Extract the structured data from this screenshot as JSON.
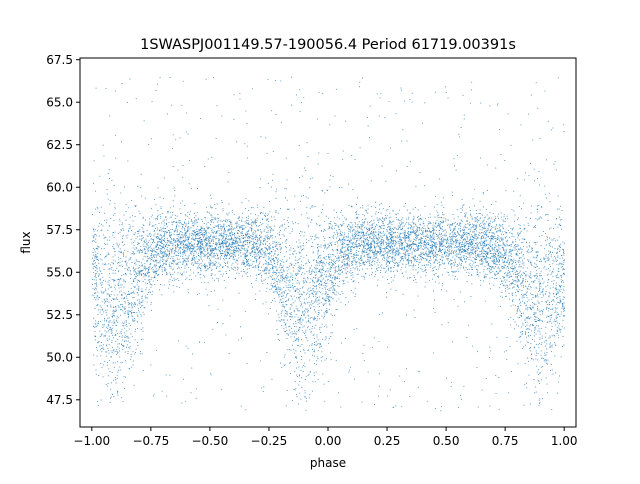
{
  "chart_data": {
    "type": "scatter",
    "title": "1SWASPJ001149.57-190056.4 Period 61719.00391s",
    "xlabel": "phase",
    "ylabel": "flux",
    "xlim": [
      -1.05,
      1.05
    ],
    "ylim": [
      45.9,
      67.6
    ],
    "x_ticks": [
      -1.0,
      -0.75,
      -0.5,
      -0.25,
      0.0,
      0.25,
      0.5,
      0.75,
      1.0
    ],
    "x_tick_labels": [
      "−1.00",
      "−0.75",
      "−0.50",
      "−0.25",
      "0.00",
      "0.25",
      "0.50",
      "0.75",
      "1.00"
    ],
    "y_ticks": [
      47.5,
      50.0,
      52.5,
      55.0,
      57.5,
      60.0,
      62.5,
      65.0,
      67.5
    ],
    "y_tick_labels": [
      "47.5",
      "50.0",
      "52.5",
      "55.0",
      "57.5",
      "60.0",
      "62.5",
      "65.0",
      "67.5"
    ],
    "grid": false,
    "legend": "none",
    "point_color": "#1f77b4",
    "series": [
      {
        "phase_range": [
          -1.0,
          1.0
        ],
        "typical_flux_band": [
          54.5,
          58.5
        ],
        "median_flux": 56.7,
        "flux_extent": [
          46.8,
          66.5
        ],
        "eclipse_centers_phase": [
          -0.9,
          -0.1,
          0.9
        ],
        "eclipse_min_flux": 51.5
      }
    ]
  }
}
